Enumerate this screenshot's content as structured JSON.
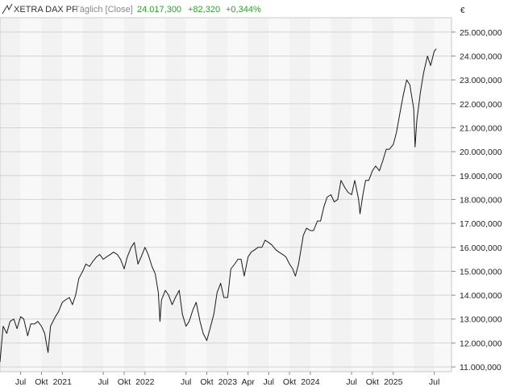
{
  "header": {
    "logo_icon": "line-chart-icon",
    "name": "XETRA DAX PF",
    "period": "Täglich [Close]",
    "price": "24.017,300",
    "change": "+82,320",
    "change_pct": "+0,344%",
    "price_color": "#2e9e2e"
  },
  "chart_data": {
    "type": "line",
    "currency": "€",
    "grid": true,
    "x_range": [
      "2020-04-01",
      "2025-09-15"
    ],
    "ylim": [
      10800000,
      25600000
    ],
    "y_ticks": [
      {
        "value": 11000000,
        "label": "11.000,000"
      },
      {
        "value": 12000000,
        "label": "12.000,000"
      },
      {
        "value": 13000000,
        "label": "13.000,000"
      },
      {
        "value": 14000000,
        "label": "14.000,000"
      },
      {
        "value": 15000000,
        "label": "15.000,000"
      },
      {
        "value": 16000000,
        "label": "16.000,000"
      },
      {
        "value": 17000000,
        "label": "17.000,000"
      },
      {
        "value": 18000000,
        "label": "18.000,000"
      },
      {
        "value": 19000000,
        "label": "19.000,000"
      },
      {
        "value": 20000000,
        "label": "20.000,000"
      },
      {
        "value": 21000000,
        "label": "21.000,000"
      },
      {
        "value": 22000000,
        "label": "22.000,000"
      },
      {
        "value": 23000000,
        "label": "23.000,000"
      },
      {
        "value": 24000000,
        "label": "24.000,000"
      },
      {
        "value": 25000000,
        "label": "25.000,000"
      }
    ],
    "x_ticks": [
      {
        "date": "2020-07-01",
        "label": "Jul"
      },
      {
        "date": "2020-10-01",
        "label": "Okt"
      },
      {
        "date": "2021-01-01",
        "label": "2021"
      },
      {
        "date": "2021-07-01",
        "label": "Jul"
      },
      {
        "date": "2021-10-01",
        "label": "Okt"
      },
      {
        "date": "2022-01-01",
        "label": "2022"
      },
      {
        "date": "2022-07-01",
        "label": "Jul"
      },
      {
        "date": "2022-10-01",
        "label": "Okt"
      },
      {
        "date": "2023-01-01",
        "label": "2023"
      },
      {
        "date": "2023-04-01",
        "label": "Apr"
      },
      {
        "date": "2023-07-01",
        "label": "Jul"
      },
      {
        "date": "2023-10-01",
        "label": "Okt"
      },
      {
        "date": "2024-01-01",
        "label": "2024"
      },
      {
        "date": "2024-07-01",
        "label": "Jul"
      },
      {
        "date": "2024-10-01",
        "label": "Okt"
      },
      {
        "date": "2025-01-01",
        "label": "2025"
      },
      {
        "date": "2025-07-01",
        "label": "Jul"
      }
    ],
    "series": [
      {
        "x": [
          "2020-04-01",
          "2020-04-15",
          "2020-05-01",
          "2020-05-15",
          "2020-06-01",
          "2020-06-15",
          "2020-07-01",
          "2020-07-15",
          "2020-08-01",
          "2020-08-15",
          "2020-09-01",
          "2020-09-15",
          "2020-10-01",
          "2020-10-15",
          "2020-10-30",
          "2020-11-10",
          "2020-12-01",
          "2020-12-15",
          "2021-01-01",
          "2021-01-15",
          "2021-02-01",
          "2021-02-15",
          "2021-03-01",
          "2021-03-15",
          "2021-04-01",
          "2021-04-15",
          "2021-05-01",
          "2021-05-15",
          "2021-06-01",
          "2021-06-15",
          "2021-07-01",
          "2021-07-15",
          "2021-08-01",
          "2021-08-15",
          "2021-09-01",
          "2021-09-15",
          "2021-10-01",
          "2021-10-15",
          "2021-11-01",
          "2021-11-15",
          "2021-12-01",
          "2021-12-15",
          "2022-01-01",
          "2022-01-15",
          "2022-02-01",
          "2022-02-15",
          "2022-03-01",
          "2022-03-08",
          "2022-03-15",
          "2022-04-01",
          "2022-04-15",
          "2022-05-01",
          "2022-05-15",
          "2022-06-01",
          "2022-06-15",
          "2022-07-01",
          "2022-07-15",
          "2022-08-01",
          "2022-08-15",
          "2022-09-01",
          "2022-09-15",
          "2022-10-01",
          "2022-10-15",
          "2022-11-01",
          "2022-11-15",
          "2022-12-01",
          "2022-12-15",
          "2023-01-01",
          "2023-01-15",
          "2023-02-01",
          "2023-02-15",
          "2023-03-01",
          "2023-03-15",
          "2023-04-01",
          "2023-04-15",
          "2023-05-01",
          "2023-05-15",
          "2023-06-01",
          "2023-06-15",
          "2023-07-01",
          "2023-07-15",
          "2023-08-01",
          "2023-08-15",
          "2023-09-01",
          "2023-09-15",
          "2023-10-01",
          "2023-10-15",
          "2023-10-27",
          "2023-11-10",
          "2023-12-01",
          "2023-12-15",
          "2024-01-01",
          "2024-01-15",
          "2024-02-01",
          "2024-02-15",
          "2024-03-01",
          "2024-03-15",
          "2024-04-01",
          "2024-04-15",
          "2024-05-01",
          "2024-05-15",
          "2024-06-01",
          "2024-06-15",
          "2024-07-01",
          "2024-07-15",
          "2024-08-01",
          "2024-08-07",
          "2024-08-20",
          "2024-09-01",
          "2024-09-15",
          "2024-10-01",
          "2024-10-15",
          "2024-11-01",
          "2024-11-15",
          "2024-12-01",
          "2024-12-15",
          "2025-01-01",
          "2025-01-15",
          "2025-02-01",
          "2025-02-15",
          "2025-03-01",
          "2025-03-15",
          "2025-04-01",
          "2025-04-07",
          "2025-04-15",
          "2025-05-01",
          "2025-05-15",
          "2025-06-01",
          "2025-06-15",
          "2025-07-01",
          "2025-07-10"
        ],
        "values": [
          11200000,
          12700000,
          12400000,
          12900000,
          13000000,
          12600000,
          13100000,
          13000000,
          12300000,
          12800000,
          12800000,
          12900000,
          12700000,
          12400000,
          11600000,
          12700000,
          13100000,
          13300000,
          13700000,
          13800000,
          13900000,
          13600000,
          14000000,
          14700000,
          15000000,
          15300000,
          15200000,
          15400000,
          15600000,
          15700000,
          15500000,
          15600000,
          15700000,
          15800000,
          15700000,
          15500000,
          15100000,
          15600000,
          16000000,
          16200000,
          15300000,
          15600000,
          16000000,
          15700000,
          15200000,
          14900000,
          14100000,
          12900000,
          13800000,
          14200000,
          14000000,
          13600000,
          13900000,
          14200000,
          13200000,
          12700000,
          12900000,
          13400000,
          13700000,
          12900000,
          12400000,
          12100000,
          12600000,
          13200000,
          14100000,
          14500000,
          13900000,
          13900000,
          15100000,
          15300000,
          15500000,
          15500000,
          14800000,
          15600000,
          15800000,
          15900000,
          16000000,
          16000000,
          16300000,
          16200000,
          16100000,
          15900000,
          15800000,
          15700000,
          15600000,
          15300000,
          15100000,
          14800000,
          15300000,
          16500000,
          16800000,
          16700000,
          16700000,
          17100000,
          17100000,
          17700000,
          18100000,
          18200000,
          17900000,
          18000000,
          18800000,
          18500000,
          18300000,
          18200000,
          18800000,
          18000000,
          17400000,
          18200000,
          18800000,
          18800000,
          19200000,
          19400000,
          19200000,
          19600000,
          20100000,
          20100000,
          20300000,
          20800000,
          21700000,
          22400000,
          23000000,
          22800000,
          21800000,
          20200000,
          21300000,
          22500000,
          23300000,
          24000000,
          23600000,
          24200000,
          24300000
        ]
      }
    ]
  }
}
